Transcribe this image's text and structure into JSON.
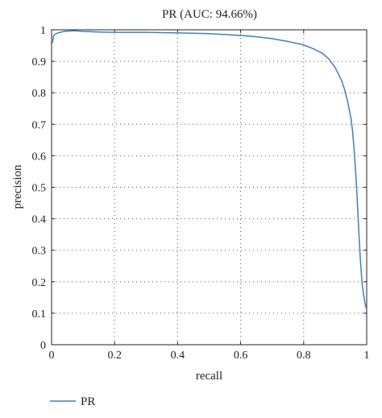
{
  "chart_data": {
    "type": "line",
    "title": "PR (AUC: 94.66%)",
    "xlabel": "recall",
    "ylabel": "precision",
    "xlim": [
      0,
      1
    ],
    "ylim": [
      0,
      1
    ],
    "xticks": [
      "0",
      "0.2",
      "0.4",
      "0.6",
      "0.8",
      "1"
    ],
    "yticks": [
      "0",
      "0.1",
      "0.2",
      "0.3",
      "0.4",
      "0.5",
      "0.6",
      "0.7",
      "0.8",
      "0.9",
      "1"
    ],
    "grid": true,
    "legend_position": "bottom-left",
    "series": [
      {
        "name": "PR",
        "color": "#3f7fc0",
        "x": [
          0.0,
          0.003,
          0.006,
          0.01,
          0.02,
          0.04,
          0.07,
          0.1,
          0.15,
          0.2,
          0.3,
          0.4,
          0.5,
          0.6,
          0.65,
          0.7,
          0.75,
          0.8,
          0.83,
          0.86,
          0.88,
          0.9,
          0.92,
          0.93,
          0.94,
          0.95,
          0.955,
          0.96,
          0.965,
          0.97,
          0.975,
          0.98,
          0.985,
          0.99,
          0.995,
          1.0
        ],
        "y": [
          0.97,
          0.96,
          0.98,
          0.985,
          0.99,
          0.995,
          0.997,
          0.995,
          0.993,
          0.992,
          0.992,
          0.99,
          0.988,
          0.982,
          0.978,
          0.972,
          0.963,
          0.952,
          0.94,
          0.925,
          0.907,
          0.88,
          0.84,
          0.81,
          0.77,
          0.72,
          0.68,
          0.62,
          0.55,
          0.46,
          0.36,
          0.27,
          0.2,
          0.16,
          0.13,
          0.11
        ]
      }
    ]
  }
}
